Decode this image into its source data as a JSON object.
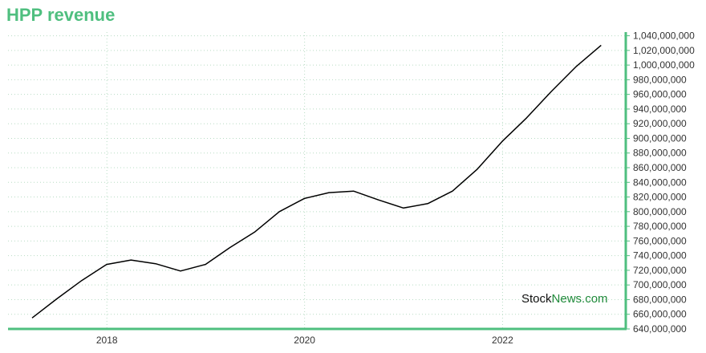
{
  "chart_data": {
    "type": "line",
    "title": "HPP revenue",
    "xlabel": "",
    "ylabel": "",
    "x_ticks": [
      "2018",
      "2020",
      "2022"
    ],
    "y_ticks": [
      640000000,
      660000000,
      680000000,
      700000000,
      720000000,
      740000000,
      760000000,
      780000000,
      800000000,
      820000000,
      840000000,
      860000000,
      880000000,
      900000000,
      920000000,
      940000000,
      960000000,
      980000000,
      1000000000,
      1020000000,
      1040000000
    ],
    "y_tick_labels": [
      "640,000,000",
      "660,000,000",
      "680,000,000",
      "700,000,000",
      "720,000,000",
      "740,000,000",
      "760,000,000",
      "780,000,000",
      "800,000,000",
      "820,000,000",
      "840,000,000",
      "860,000,000",
      "880,000,000",
      "900,000,000",
      "920,000,000",
      "940,000,000",
      "960,000,000",
      "980,000,000",
      "1,000,000,000",
      "1,020,000,000",
      "1,040,000,000"
    ],
    "ylim": [
      640000000,
      1045000000
    ],
    "xlim": [
      "2017-01-01",
      "2023-04-01"
    ],
    "grid": true,
    "series": [
      {
        "color": "#000000",
        "points": [
          {
            "x": "2017-03-31",
            "y": 655000000
          },
          {
            "x": "2017-06-30",
            "y": 681000000
          },
          {
            "x": "2017-09-30",
            "y": 706000000
          },
          {
            "x": "2017-12-31",
            "y": 728000000
          },
          {
            "x": "2018-03-31",
            "y": 734000000
          },
          {
            "x": "2018-06-30",
            "y": 729000000
          },
          {
            "x": "2018-09-30",
            "y": 719000000
          },
          {
            "x": "2018-12-31",
            "y": 728000000
          },
          {
            "x": "2019-03-31",
            "y": 751000000
          },
          {
            "x": "2019-06-30",
            "y": 772000000
          },
          {
            "x": "2019-09-30",
            "y": 800000000
          },
          {
            "x": "2019-12-31",
            "y": 818000000
          },
          {
            "x": "2020-03-31",
            "y": 826000000
          },
          {
            "x": "2020-06-30",
            "y": 828000000
          },
          {
            "x": "2020-09-30",
            "y": 816000000
          },
          {
            "x": "2020-12-31",
            "y": 805000000
          },
          {
            "x": "2021-03-31",
            "y": 811000000
          },
          {
            "x": "2021-06-30",
            "y": 828000000
          },
          {
            "x": "2021-09-30",
            "y": 858000000
          },
          {
            "x": "2021-12-31",
            "y": 896000000
          },
          {
            "x": "2022-03-31",
            "y": 928000000
          },
          {
            "x": "2022-06-30",
            "y": 964000000
          },
          {
            "x": "2022-09-30",
            "y": 998000000
          },
          {
            "x": "2022-12-31",
            "y": 1027000000
          }
        ]
      }
    ],
    "colors": {
      "title": "#4fbf7f",
      "axis": "#4fbf7f",
      "grid": "#b8dcc4",
      "line": "#000000"
    }
  },
  "watermark": {
    "part1": "Stock",
    "part2": "News.com"
  }
}
